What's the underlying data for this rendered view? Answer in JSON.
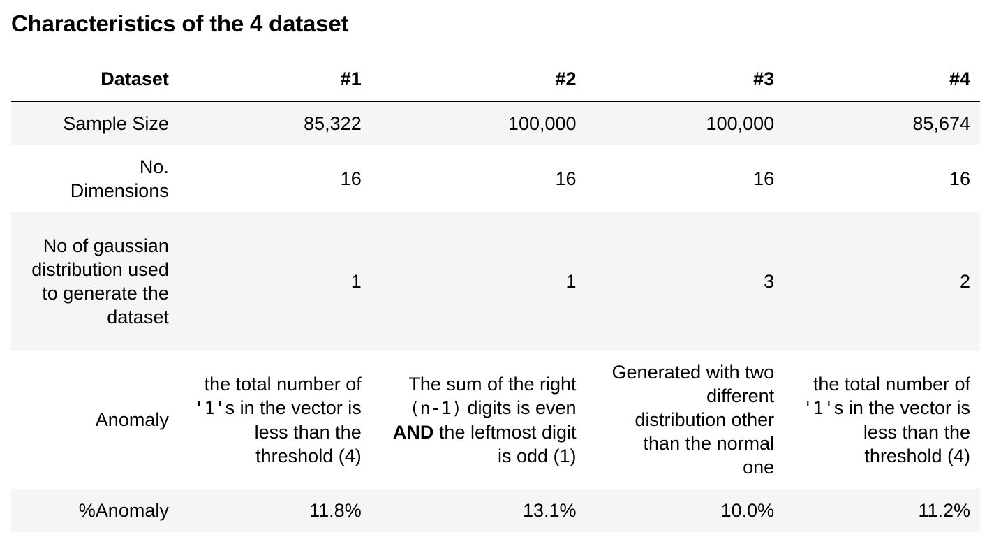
{
  "title": "Characteristics of the 4 dataset",
  "table": {
    "headers": [
      "Dataset",
      "#1",
      "#2",
      "#3",
      "#4"
    ],
    "rows": [
      {
        "label": "Sample Size",
        "values": [
          "85,322",
          "100,000",
          "100,000",
          "85,674"
        ]
      },
      {
        "label": "No. Dimensions",
        "values": [
          "16",
          "16",
          "16",
          "16"
        ]
      },
      {
        "label": "No of gaussian distribution used to generate the dataset",
        "values": [
          "1",
          "1",
          "3",
          "2"
        ]
      },
      {
        "label": "Anomaly",
        "values": {
          "d1": {
            "pre": "the total number of ",
            "code": "'1'",
            "post": "s in the vector is less than the threshold (4)"
          },
          "d2": {
            "pre": "The sum of the right ",
            "code": "(n-1)",
            "mid": " digits is even ",
            "bold": "AND",
            "post": " the leftmost digit is odd (1)"
          },
          "d3": "Generated with two different distribution other than the normal one",
          "d4": {
            "pre": "the total number of ",
            "code": "'1'",
            "post": "s in the vector is less than the threshold (4)"
          }
        }
      },
      {
        "label": "%Anomaly",
        "values": [
          "11.8%",
          "13.1%",
          "10.0%",
          "11.2%"
        ]
      }
    ]
  }
}
